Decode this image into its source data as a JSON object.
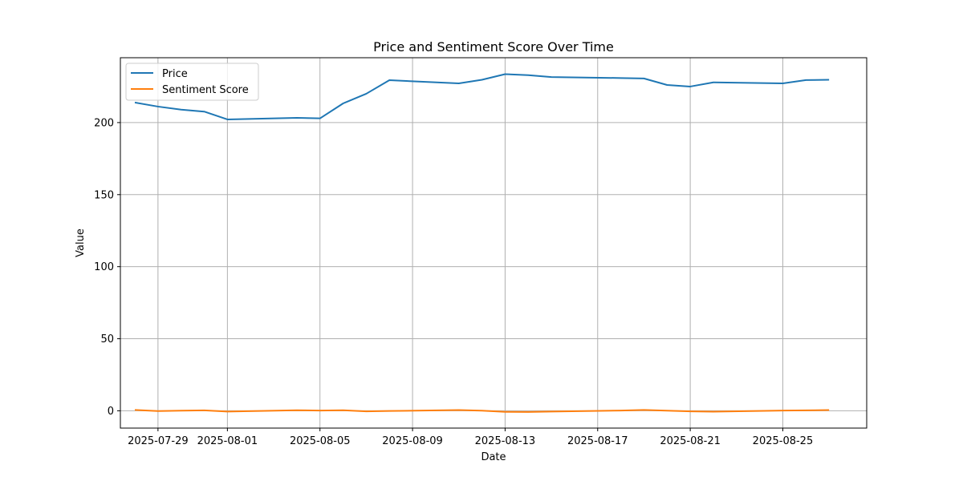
{
  "chart_data": {
    "type": "line",
    "title": "Price and Sentiment Score Over Time",
    "xlabel": "Date",
    "ylabel": "Value",
    "ylim": [
      -12,
      245
    ],
    "xlim": [
      "2025-07-27T09:00",
      "2025-08-28T15:00"
    ],
    "grid": true,
    "legend_position": "top-left",
    "x_ticks": [
      "2025-07-29",
      "2025-08-01",
      "2025-08-05",
      "2025-08-09",
      "2025-08-13",
      "2025-08-17",
      "2025-08-21",
      "2025-08-25"
    ],
    "y_ticks": [
      0,
      50,
      100,
      150,
      200
    ],
    "x": [
      "2025-07-28",
      "2025-07-29",
      "2025-07-30",
      "2025-07-31",
      "2025-08-01",
      "2025-08-04",
      "2025-08-05",
      "2025-08-06",
      "2025-08-07",
      "2025-08-08",
      "2025-08-11",
      "2025-08-12",
      "2025-08-13",
      "2025-08-14",
      "2025-08-15",
      "2025-08-18",
      "2025-08-19",
      "2025-08-20",
      "2025-08-21",
      "2025-08-22",
      "2025-08-25",
      "2025-08-26",
      "2025-08-27"
    ],
    "series": [
      {
        "name": "Price",
        "color": "#1f77b4",
        "values": [
          213.9,
          211.1,
          209.0,
          207.6,
          202.2,
          203.3,
          202.9,
          213.3,
          220.0,
          229.4,
          227.2,
          229.7,
          233.6,
          232.9,
          231.6,
          230.9,
          230.6,
          226.1,
          225.0,
          227.9,
          227.2,
          229.5,
          229.7
        ]
      },
      {
        "name": "Sentiment Score",
        "color": "#ff7f0e",
        "values": [
          0.6,
          -0.2,
          0.1,
          0.3,
          -0.5,
          0.4,
          0.2,
          0.4,
          -0.4,
          -0.1,
          0.5,
          0.1,
          -0.7,
          -0.8,
          -0.5,
          0.2,
          0.6,
          0.1,
          -0.4,
          -0.6,
          0.2,
          0.3,
          0.5
        ]
      }
    ]
  }
}
